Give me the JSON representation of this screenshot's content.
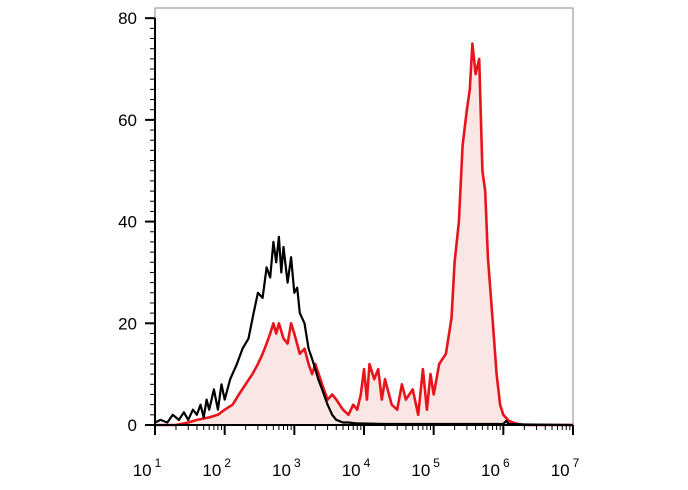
{
  "chart_data": {
    "type": "area",
    "title": "",
    "xlabel": "",
    "ylabel": "",
    "x_scale": "log",
    "xlim": [
      10,
      10000000
    ],
    "ylim": [
      0,
      82
    ],
    "grid": false,
    "legend": "none",
    "x_tick_labels": [
      {
        "base": "10",
        "exp": "1"
      },
      {
        "base": "10",
        "exp": "2"
      },
      {
        "base": "10",
        "exp": "3"
      },
      {
        "base": "10",
        "exp": "4"
      },
      {
        "base": "10",
        "exp": "5"
      },
      {
        "base": "10",
        "exp": "6"
      },
      {
        "base": "10",
        "exp": "7"
      }
    ],
    "y_ticks": [
      0,
      20,
      40,
      60,
      80
    ],
    "y_tick_labels": [
      "0",
      "20",
      "40",
      "60",
      "80"
    ],
    "series": [
      {
        "color": "#000000",
        "fill": "none",
        "x": [
          10,
          12,
          15,
          18,
          22,
          26,
          30,
          35,
          40,
          45,
          50,
          55,
          60,
          70,
          80,
          90,
          100,
          120,
          150,
          180,
          220,
          260,
          300,
          350,
          400,
          450,
          500,
          550,
          600,
          650,
          700,
          800,
          900,
          1000,
          1100,
          1200,
          1400,
          1600,
          1800,
          2000,
          2200,
          2500,
          3000,
          3500,
          4000,
          5000,
          6000,
          8000,
          10000,
          20000,
          100000,
          1000000,
          1100000,
          1200000,
          2000000,
          10000000
        ],
        "y": [
          0.5,
          1,
          0.5,
          2,
          1,
          2.5,
          1,
          3,
          2,
          4,
          1.5,
          5,
          3,
          7,
          3,
          8,
          5,
          9,
          12,
          15,
          17,
          22,
          26,
          25,
          31,
          29,
          36,
          32,
          37,
          30,
          35,
          28,
          33,
          26,
          27,
          22,
          20,
          15,
          13,
          11,
          9,
          7,
          4,
          2,
          1,
          0.5,
          0.5,
          0.3,
          0.3,
          0.2,
          0.2,
          0.2,
          0.8,
          0.2,
          0.1,
          0
        ]
      },
      {
        "color": "#e8141b",
        "fill": "#fbe6e6",
        "x": [
          10,
          20,
          30,
          40,
          60,
          80,
          100,
          130,
          160,
          200,
          250,
          300,
          350,
          400,
          450,
          500,
          550,
          600,
          700,
          800,
          900,
          1000,
          1200,
          1400,
          1600,
          1800,
          2000,
          2500,
          3000,
          3500,
          4000,
          5000,
          6000,
          7000,
          8000,
          9000,
          10000,
          11000,
          12000,
          14000,
          16000,
          18000,
          20000,
          25000,
          30000,
          35000,
          40000,
          50000,
          60000,
          70000,
          80000,
          90000,
          100000,
          120000,
          150000,
          180000,
          200000,
          230000,
          260000,
          300000,
          330000,
          360000,
          400000,
          450000,
          500000,
          550000,
          600000,
          700000,
          800000,
          900000,
          1000000,
          1200000,
          1500000,
          2000000,
          10000000
        ],
        "y": [
          0,
          0,
          0.5,
          1,
          1.5,
          2,
          3,
          4,
          6,
          8,
          10,
          12,
          14,
          16,
          18,
          20,
          18,
          20,
          17,
          16,
          20,
          18,
          14,
          15,
          12,
          10,
          12,
          8,
          5,
          6,
          5,
          3,
          2,
          4,
          3,
          6,
          11,
          5,
          12,
          9,
          11,
          5,
          9,
          4,
          3,
          8,
          5,
          7,
          2,
          11,
          3,
          10,
          6,
          12,
          14,
          21,
          32,
          40,
          55,
          62,
          66,
          75,
          69,
          72,
          50,
          46,
          33,
          21,
          10,
          4,
          2,
          0.8,
          0.3,
          0,
          0
        ]
      }
    ]
  }
}
